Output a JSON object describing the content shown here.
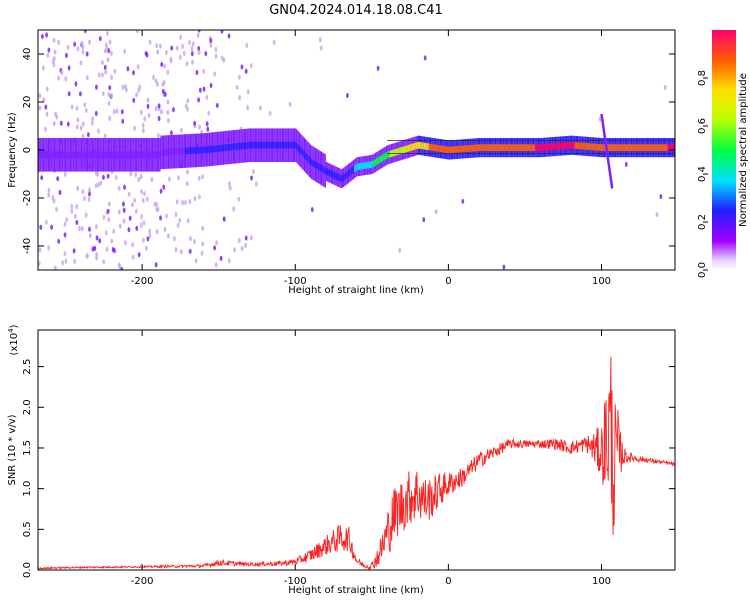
{
  "title": "GN04.2024.014.18.08.C41",
  "chart_data": [
    {
      "type": "heatmap",
      "xlabel": "Height of straight line (km)",
      "ylabel": "Frequency (Hz)",
      "xlim": [
        -268,
        148
      ],
      "ylim": [
        -50,
        50
      ],
      "xticks": [
        -200,
        -100,
        0,
        100
      ],
      "xtick_labels": [
        "-200",
        "-100",
        "0",
        "100"
      ],
      "yticks": [
        -40,
        -20,
        0,
        20,
        40
      ],
      "ytick_labels": [
        "-40",
        "-20",
        "0",
        "20",
        "40"
      ],
      "colorbar": {
        "label": "Normalized spectral amplitude",
        "range": [
          0,
          1
        ],
        "ticks": [
          0.0,
          0.2,
          0.4,
          0.6,
          0.8
        ],
        "tick_labels": [
          "0.0",
          "0.2",
          "0.4",
          "0.6",
          "0.8"
        ],
        "colormap": "rainbow",
        "colors": [
          "#ffffff",
          "#c9a8f0",
          "#8020ff",
          "#3020ff",
          "#00e0ff",
          "#00ff40",
          "#c0ff00",
          "#ffe000",
          "#ff6000",
          "#ff0060"
        ]
      },
      "ridge": {
        "x": [
          -188,
          -160,
          -130,
          -100,
          -90,
          -80,
          -70,
          -60,
          -50,
          -40,
          -30,
          -20,
          -10,
          0,
          20,
          40,
          60,
          80,
          100,
          148
        ],
        "y": [
          -1,
          0,
          2,
          2,
          -5,
          -9,
          -12,
          -7,
          -6,
          -2,
          0,
          2,
          1,
          0,
          1,
          1,
          1,
          2,
          1,
          1
        ],
        "amplitude": [
          0.25,
          0.3,
          0.3,
          0.28,
          0.3,
          0.35,
          0.35,
          0.4,
          0.5,
          0.6,
          0.7,
          0.8,
          0.85,
          0.85,
          0.9,
          0.92,
          0.95,
          0.95,
          0.9,
          0.95
        ]
      },
      "grid": false
    },
    {
      "type": "line",
      "xlabel": "Height of straight line (km)",
      "ylabel": "SNR (10 * v/v)",
      "yscale_label": "(x10",
      "yscale_exponent": "4",
      "xlim": [
        -268,
        148
      ],
      "ylim": [
        0,
        2.95
      ],
      "xticks": [
        -200,
        -100,
        0,
        100
      ],
      "xtick_labels": [
        "-200",
        "-100",
        "0",
        "100"
      ],
      "yticks": [
        0.0,
        0.5,
        1.0,
        1.5,
        2.0,
        2.5
      ],
      "ytick_labels": [
        "0.0",
        "0.5",
        "1.0",
        "1.5",
        "2.0",
        "2.5"
      ],
      "series": [
        {
          "color": "#ff2020",
          "x": [
            -268,
            -250,
            -200,
            -160,
            -150,
            -130,
            -110,
            -100,
            -90,
            -80,
            -75,
            -70,
            -65,
            -60,
            -55,
            -50,
            -45,
            -40,
            -35,
            -30,
            -25,
            -20,
            -15,
            -10,
            -5,
            0,
            10,
            20,
            30,
            40,
            50,
            60,
            70,
            80,
            90,
            95,
            100,
            103,
            106,
            108,
            110,
            112,
            115,
            120,
            130,
            148
          ],
          "y": [
            0.02,
            0.03,
            0.04,
            0.05,
            0.09,
            0.07,
            0.08,
            0.1,
            0.18,
            0.3,
            0.35,
            0.4,
            0.38,
            0.12,
            0.05,
            0.05,
            0.2,
            0.45,
            0.7,
            0.8,
            0.9,
            0.95,
            0.85,
            0.9,
            1.0,
            1.05,
            1.15,
            1.35,
            1.45,
            1.55,
            1.55,
            1.55,
            1.55,
            1.5,
            1.55,
            1.5,
            1.45,
            1.6,
            1.8,
            1.2,
            1.5,
            1.45,
            1.4,
            1.38,
            1.35,
            1.3
          ],
          "noise": [
            0.01,
            0.01,
            0.01,
            0.02,
            0.04,
            0.02,
            0.03,
            0.04,
            0.08,
            0.12,
            0.15,
            0.18,
            0.15,
            0.06,
            0.03,
            0.05,
            0.15,
            0.3,
            0.35,
            0.35,
            0.35,
            0.35,
            0.3,
            0.25,
            0.22,
            0.15,
            0.12,
            0.1,
            0.08,
            0.06,
            0.05,
            0.05,
            0.07,
            0.08,
            0.1,
            0.2,
            0.35,
            0.7,
            1.1,
            0.9,
            0.6,
            0.3,
            0.1,
            0.05,
            0.03,
            0.02
          ]
        }
      ],
      "grid": false
    }
  ]
}
